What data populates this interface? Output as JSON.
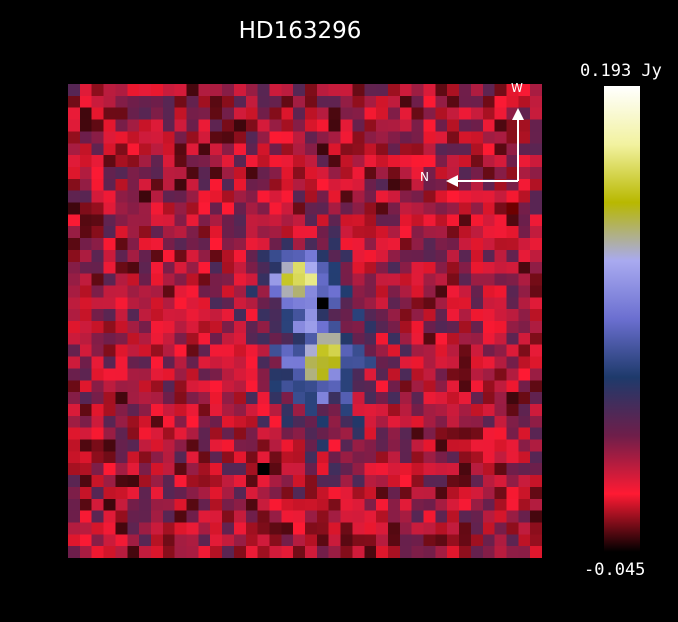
{
  "title": "HD163296",
  "compass": {
    "north_label": "N",
    "west_label": "W"
  },
  "colorbar": {
    "max_label": "0.193 Jy",
    "min_label": "-0.045",
    "max_value": 0.193,
    "min_value": -0.045,
    "unit": "Jy",
    "colormap_stops": [
      "#000000",
      "#ff1a33",
      "#6e1e4a",
      "#1e3a6b",
      "#6b6fd0",
      "#a9aaf0",
      "#b8b800",
      "#f2f2a0",
      "#ffffff"
    ]
  }
}
